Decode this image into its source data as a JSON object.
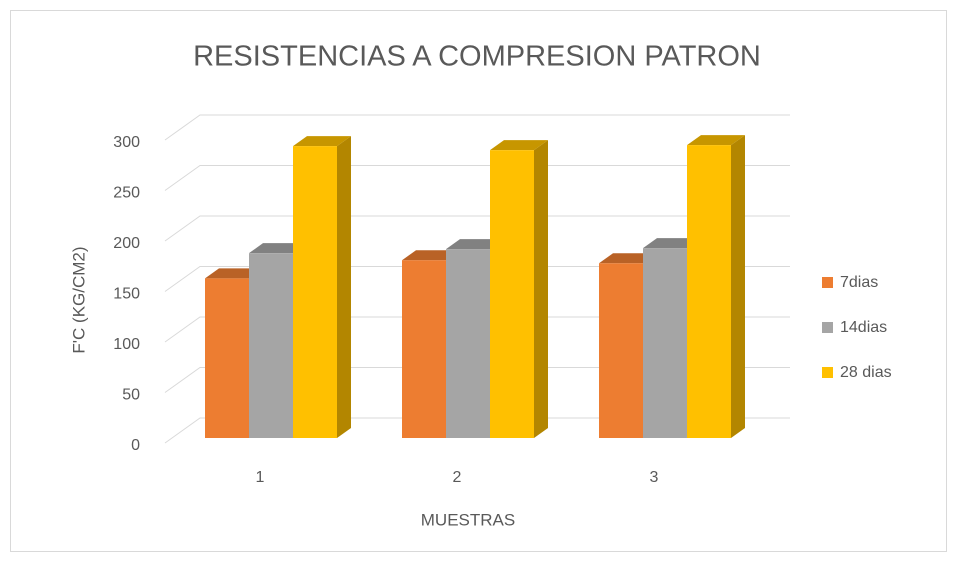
{
  "chart_data": {
    "type": "bar3d",
    "title": "RESISTENCIAS A COMPRESION PATRON",
    "x_label": "MUESTRAS",
    "y_label": "F'C (KG/CM2)",
    "categories": [
      "1",
      "2",
      "3"
    ],
    "series": [
      {
        "name": "7dias",
        "color": "#ed7d31",
        "values": [
          158,
          176,
          173
        ]
      },
      {
        "name": "14dias",
        "color": "#a5a5a5",
        "values": [
          183,
          187,
          188
        ]
      },
      {
        "name": "28 dias",
        "color": "#ffc000",
        "values": [
          289,
          285,
          290
        ]
      }
    ],
    "ylim": [
      0,
      300
    ],
    "yticks": [
      0,
      50,
      100,
      150,
      200,
      250,
      300
    ],
    "grid": true,
    "legend": "right"
  }
}
